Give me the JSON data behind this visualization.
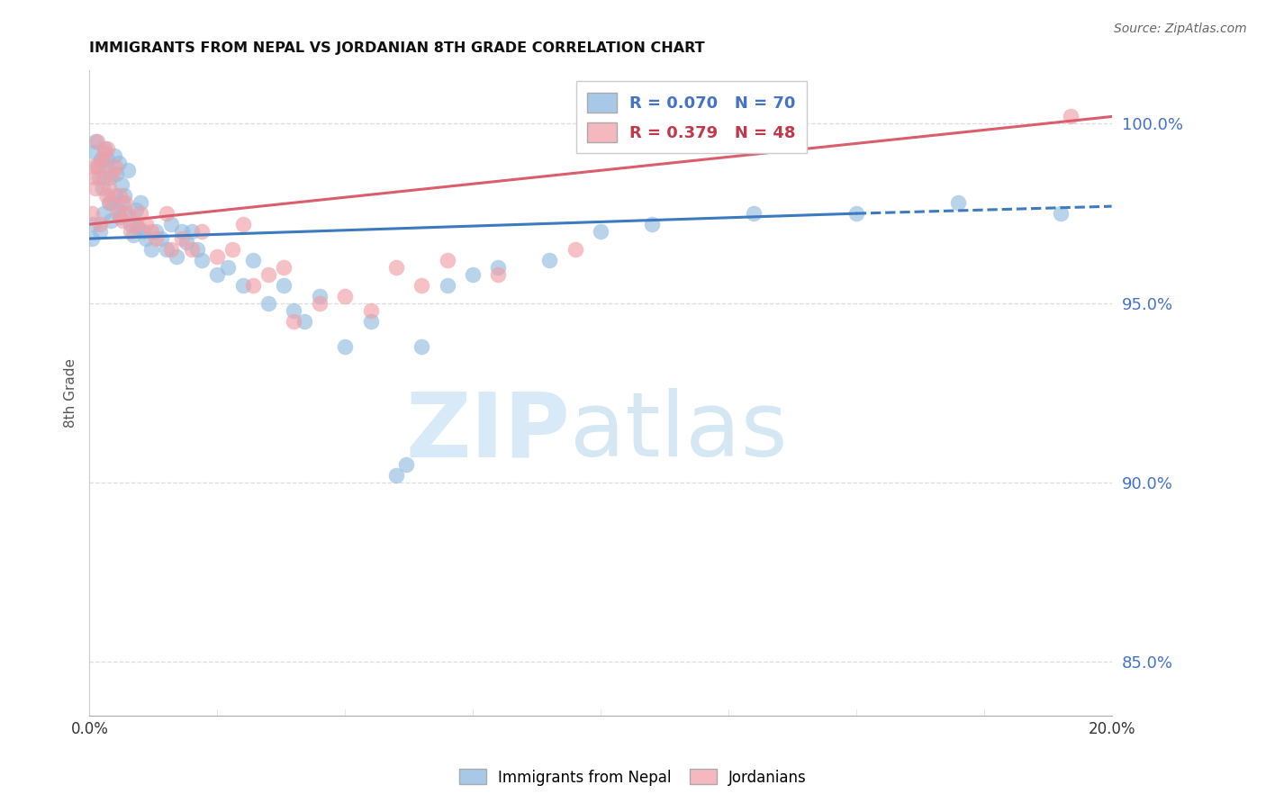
{
  "title": "IMMIGRANTS FROM NEPAL VS JORDANIAN 8TH GRADE CORRELATION CHART",
  "source": "Source: ZipAtlas.com",
  "ylabel": "8th Grade",
  "ylabel_right_ticks": [
    85.0,
    90.0,
    95.0,
    100.0
  ],
  "xlim": [
    0.0,
    20.0
  ],
  "ylim": [
    83.5,
    101.5
  ],
  "nepal_R": 0.07,
  "nepal_N": 70,
  "jordan_R": 0.379,
  "jordan_N": 48,
  "nepal_color": "#92bce0",
  "jordan_color": "#f0a0a8",
  "nepal_line_color": "#3d7abf",
  "jordan_line_color": "#d95f6e",
  "legend_box_color_blue": "#a8c8e8",
  "legend_box_color_pink": "#f4b8be",
  "legend_text_blue": "#4472c4",
  "legend_text_pink": "#c0394a",
  "watermark_zip_color": "#d8eaf8",
  "watermark_atlas_color": "#c5ddf0",
  "nepal_scatter_x": [
    0.05,
    0.08,
    0.1,
    0.12,
    0.15,
    0.18,
    0.2,
    0.22,
    0.25,
    0.28,
    0.3,
    0.32,
    0.35,
    0.38,
    0.4,
    0.42,
    0.45,
    0.48,
    0.5,
    0.52,
    0.55,
    0.58,
    0.6,
    0.62,
    0.65,
    0.68,
    0.7,
    0.75,
    0.8,
    0.85,
    0.9,
    0.95,
    1.0,
    1.05,
    1.1,
    1.2,
    1.3,
    1.4,
    1.5,
    1.6,
    1.7,
    1.8,
    1.9,
    2.0,
    2.1,
    2.2,
    2.5,
    2.7,
    3.0,
    3.2,
    3.5,
    3.8,
    4.0,
    4.2,
    4.5,
    5.0,
    5.5,
    6.0,
    6.2,
    6.5,
    7.0,
    7.5,
    8.0,
    9.0,
    10.0,
    11.0,
    13.0,
    15.0,
    17.0,
    19.0
  ],
  "nepal_scatter_y": [
    96.8,
    97.2,
    99.2,
    99.5,
    98.8,
    98.5,
    97.0,
    99.0,
    98.2,
    97.5,
    99.3,
    98.8,
    99.0,
    97.8,
    98.5,
    97.3,
    97.8,
    99.1,
    98.0,
    98.6,
    97.6,
    98.9,
    97.4,
    98.3,
    97.8,
    98.0,
    97.5,
    98.7,
    97.2,
    96.9,
    97.6,
    97.1,
    97.8,
    97.0,
    96.8,
    96.5,
    97.0,
    96.8,
    96.5,
    97.2,
    96.3,
    97.0,
    96.7,
    97.0,
    96.5,
    96.2,
    95.8,
    96.0,
    95.5,
    96.2,
    95.0,
    95.5,
    94.8,
    94.5,
    95.2,
    93.8,
    94.5,
    90.2,
    90.5,
    93.8,
    95.5,
    95.8,
    96.0,
    96.2,
    97.0,
    97.2,
    97.5,
    97.5,
    97.8,
    97.5
  ],
  "jordan_scatter_x": [
    0.05,
    0.08,
    0.1,
    0.12,
    0.15,
    0.18,
    0.2,
    0.25,
    0.28,
    0.3,
    0.32,
    0.35,
    0.38,
    0.4,
    0.45,
    0.5,
    0.55,
    0.6,
    0.65,
    0.7,
    0.75,
    0.8,
    0.9,
    1.0,
    1.1,
    1.2,
    1.3,
    1.5,
    1.6,
    1.8,
    2.0,
    2.2,
    2.5,
    2.8,
    3.0,
    3.2,
    3.5,
    3.8,
    4.0,
    4.5,
    5.0,
    5.5,
    6.0,
    6.5,
    7.0,
    8.0,
    9.5,
    19.2
  ],
  "jordan_scatter_y": [
    97.5,
    98.8,
    98.5,
    98.2,
    99.5,
    98.8,
    97.2,
    99.0,
    98.5,
    99.2,
    98.0,
    99.3,
    98.2,
    97.8,
    98.6,
    98.8,
    97.5,
    98.0,
    97.3,
    97.8,
    97.5,
    97.0,
    97.2,
    97.5,
    97.2,
    97.0,
    96.8,
    97.5,
    96.5,
    96.8,
    96.5,
    97.0,
    96.3,
    96.5,
    97.2,
    95.5,
    95.8,
    96.0,
    94.5,
    95.0,
    95.2,
    94.8,
    96.0,
    95.5,
    96.2,
    95.8,
    96.5,
    100.2
  ],
  "nepal_line_x0": 0.0,
  "nepal_line_y0": 96.8,
  "nepal_line_x1": 15.0,
  "nepal_line_y1": 97.5,
  "nepal_dash_x0": 15.0,
  "nepal_dash_y0": 97.5,
  "nepal_dash_x1": 20.0,
  "nepal_dash_y1": 97.7,
  "jordan_line_x0": 0.0,
  "jordan_line_y0": 97.2,
  "jordan_line_x1": 20.0,
  "jordan_line_y1": 100.2
}
